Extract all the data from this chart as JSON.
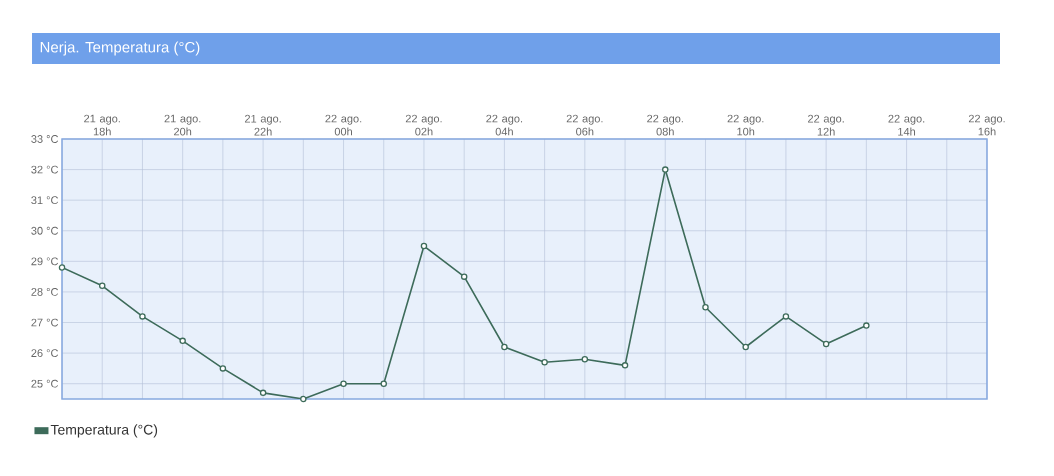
{
  "chart_data": {
    "type": "line",
    "title": "Nerja. Temperatura (°C)",
    "categories": [
      null,
      "21 ago. 18h",
      null,
      "21 ago. 20h",
      null,
      "21 ago. 22h",
      null,
      "22 ago. 00h",
      null,
      "22 ago. 02h",
      null,
      "22 ago. 04h",
      null,
      "22 ago. 06h",
      null,
      "22 ago. 08h",
      null,
      "22 ago. 10h",
      null,
      "22 ago. 12h",
      null,
      "22 ago. 14h",
      null,
      "22 ago. 16h"
    ],
    "series": [
      {
        "name": "Temperatura (°C)",
        "color": "#3d6b5a",
        "values": [
          28.8,
          28.2,
          27.2,
          26.4,
          25.5,
          24.7,
          24.5,
          25.0,
          25.0,
          29.5,
          28.5,
          26.2,
          25.7,
          25.8,
          25.6,
          32.0,
          27.5,
          26.2,
          27.2,
          26.3,
          26.9,
          null,
          null,
          null
        ]
      }
    ],
    "ylim": [
      24.5,
      33
    ],
    "yticks": [
      {
        "value": 25,
        "label": "25 °C"
      },
      {
        "value": 26,
        "label": "26 °C"
      },
      {
        "value": 27,
        "label": "27 °C"
      },
      {
        "value": 28,
        "label": "28 °C"
      },
      {
        "value": 29,
        "label": "29 °C"
      },
      {
        "value": 30,
        "label": "30 °C"
      },
      {
        "value": 31,
        "label": "31 °C"
      },
      {
        "value": 32,
        "label": "32 °C"
      },
      {
        "value": 33,
        "label": "33 °C"
      }
    ],
    "grid": true,
    "legend": "bottom left",
    "marker": "circle",
    "line_style": "solid"
  }
}
